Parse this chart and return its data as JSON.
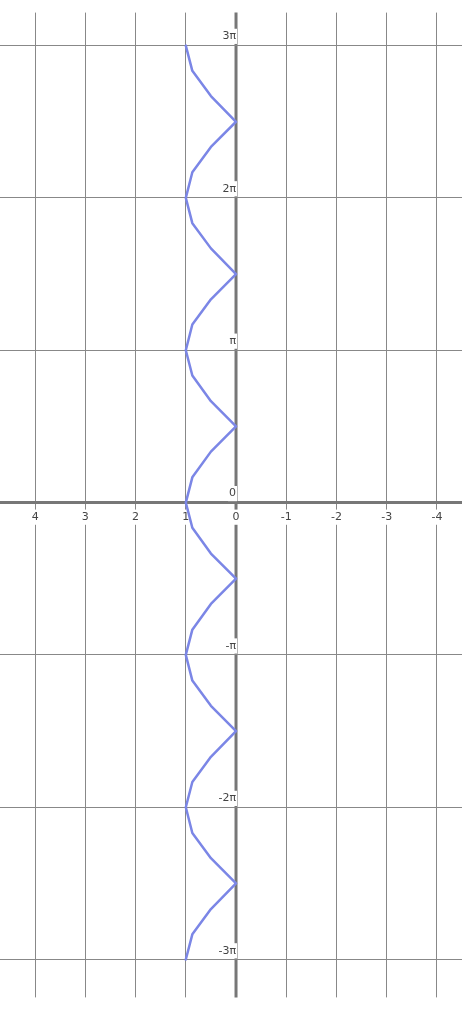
{
  "chart_data": {
    "type": "line",
    "series": [
      {
        "color": "#7b86e6",
        "x": [
          1,
          0.87,
          0.5,
          0,
          0.5,
          0.87,
          1,
          0.87,
          0.5,
          0,
          0.5,
          0.87,
          1,
          0.87,
          0.5,
          0,
          0.5,
          0.87,
          1,
          0.87,
          0.5,
          0,
          0.5,
          0.87,
          1,
          0.87,
          0.5,
          0,
          0.5,
          0.87,
          1,
          0.87,
          0.5,
          0,
          0.5,
          0.87,
          1
        ],
        "values": [
          -9.42,
          -8.9,
          -8.38,
          -7.85,
          -7.33,
          -6.81,
          -6.28,
          -5.76,
          -5.24,
          -4.71,
          -4.19,
          -3.67,
          -3.14,
          -2.62,
          -2.09,
          -1.57,
          -1.05,
          -0.52,
          0,
          0.52,
          1.05,
          1.57,
          2.09,
          2.62,
          3.14,
          3.67,
          4.19,
          4.71,
          5.24,
          5.76,
          6.28,
          6.81,
          7.33,
          7.85,
          8.38,
          8.9,
          9.42
        ]
      }
    ],
    "xlim": [
      4.7,
      -4.5
    ],
    "ylim": [
      -10.2,
      10.1
    ],
    "xticks": [
      4,
      3,
      2,
      1,
      0,
      -1,
      -2,
      -3,
      -4
    ],
    "yticks": [
      {
        "value": -9.4248,
        "label": "-3π"
      },
      {
        "value": -6.2832,
        "label": "-2π"
      },
      {
        "value": -3.1416,
        "label": "-π"
      },
      {
        "value": 0,
        "label": "0"
      },
      {
        "value": 3.1416,
        "label": "π"
      },
      {
        "value": 6.2832,
        "label": "2π"
      },
      {
        "value": 9.4248,
        "label": "3π"
      }
    ],
    "grid": true,
    "legend": false,
    "marker": "none",
    "line_style": "solid"
  }
}
